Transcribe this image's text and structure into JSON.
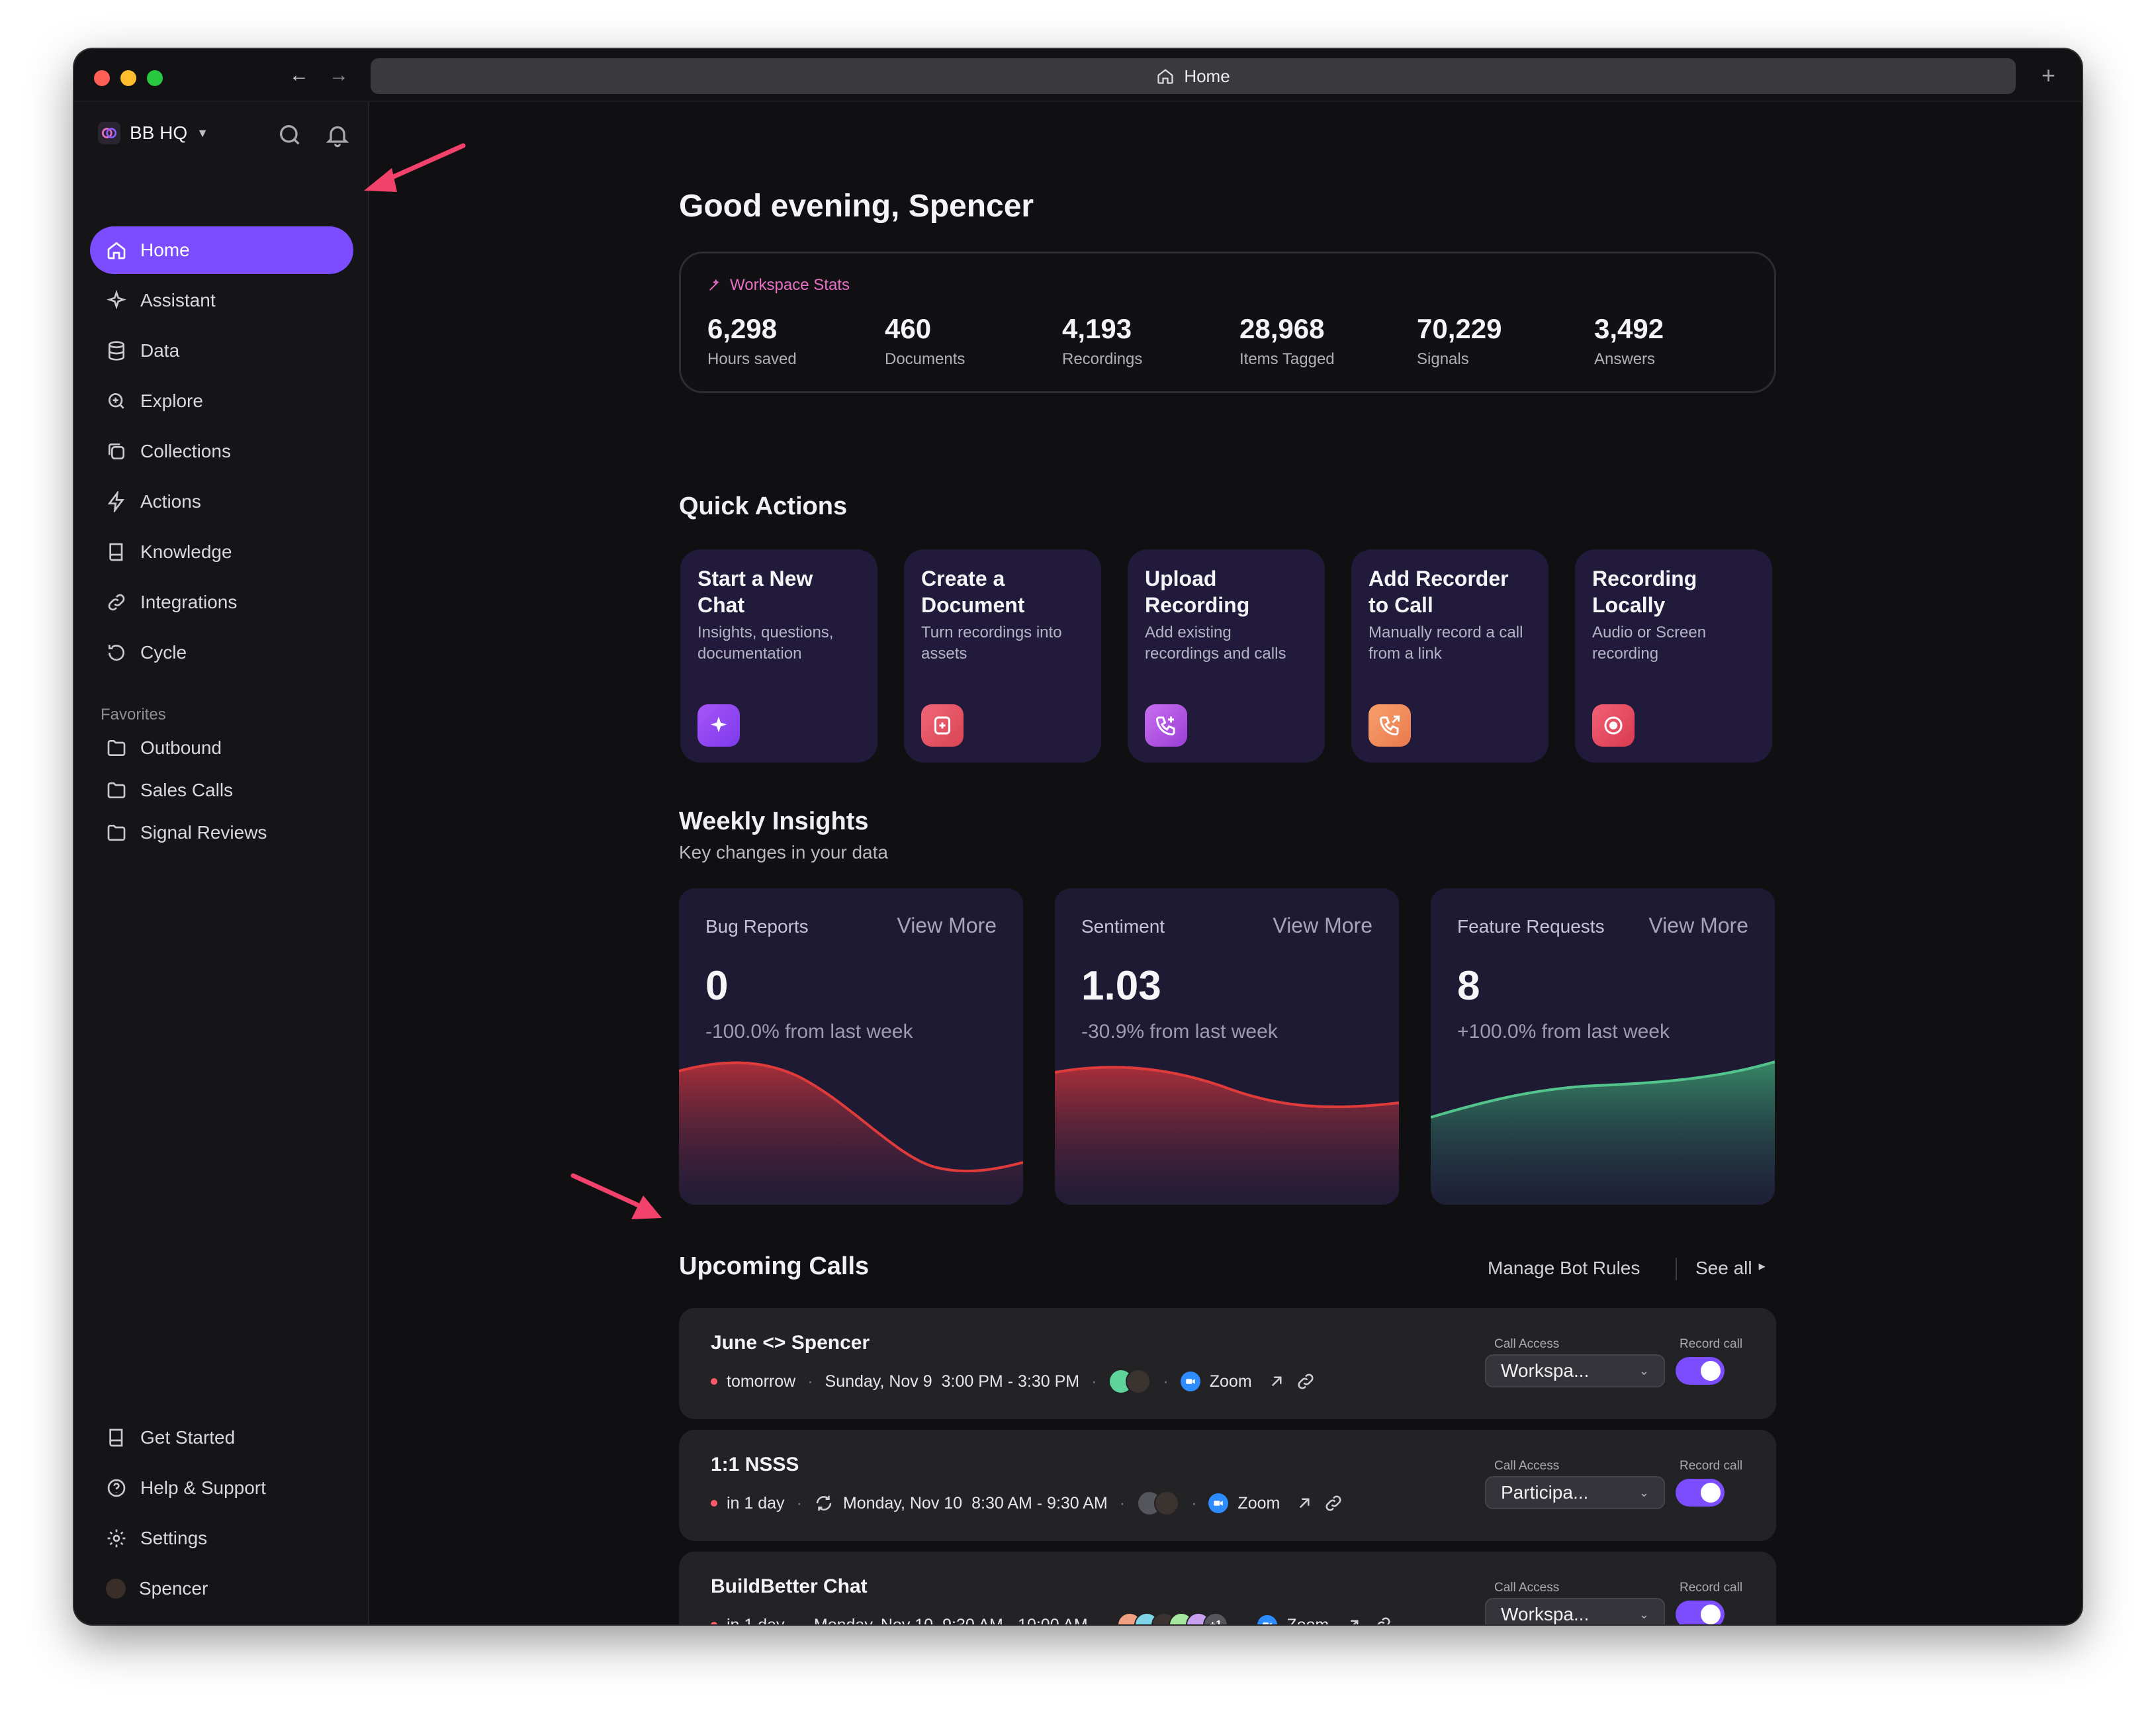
{
  "window": {
    "url_title": "Home"
  },
  "workspace": {
    "name": "BB HQ"
  },
  "nav": [
    {
      "label": "Home",
      "icon": "home-icon"
    },
    {
      "label": "Assistant",
      "icon": "sparkle-icon"
    },
    {
      "label": "Data",
      "icon": "database-icon"
    },
    {
      "label": "Explore",
      "icon": "zoom-icon"
    },
    {
      "label": "Collections",
      "icon": "collections-icon"
    },
    {
      "label": "Actions",
      "icon": "bolt-icon"
    },
    {
      "label": "Knowledge",
      "icon": "book-icon"
    },
    {
      "label": "Integrations",
      "icon": "link-icon"
    },
    {
      "label": "Cycle",
      "icon": "cycle-icon"
    }
  ],
  "favorites": {
    "title": "Favorites",
    "items": [
      "Outbound",
      "Sales Calls",
      "Signal Reviews"
    ]
  },
  "bottom_nav": [
    "Get Started",
    "Help & Support",
    "Settings",
    "Spencer"
  ],
  "greeting": "Good evening, Spencer",
  "workspace_stats": {
    "title": "Workspace Stats",
    "items": [
      {
        "value": "6,298",
        "label": "Hours saved"
      },
      {
        "value": "460",
        "label": "Documents"
      },
      {
        "value": "4,193",
        "label": "Recordings"
      },
      {
        "value": "28,968",
        "label": "Items Tagged"
      },
      {
        "value": "70,229",
        "label": "Signals"
      },
      {
        "value": "3,492",
        "label": "Answers"
      }
    ]
  },
  "quick_actions": {
    "title": "Quick Actions",
    "items": [
      {
        "title": "Start a New Chat",
        "desc": "Insights, questions, documentation",
        "icon": "sparkle-icon",
        "color": "#8b5cf6"
      },
      {
        "title": "Create a Document",
        "desc": "Turn recordings into assets",
        "icon": "document-plus-icon",
        "color": "#e0566a"
      },
      {
        "title": "Upload Recording",
        "desc": "Add existing recordings and calls",
        "icon": "phone-plus-icon",
        "color": "#b455e0"
      },
      {
        "title": "Add Recorder to Call",
        "desc": "Manually record a call from a link",
        "icon": "phone-arrow-icon",
        "color": "#f08a5d"
      },
      {
        "title": "Recording Locally",
        "desc": "Audio or Screen recording",
        "icon": "record-icon",
        "color": "#e5485b"
      }
    ]
  },
  "weekly_insights": {
    "title": "Weekly Insights",
    "subtitle": "Key changes in your data",
    "view_more": "View More",
    "cards": [
      {
        "label": "Bug Reports",
        "value": "0",
        "change": "-100.0% from last week",
        "trend": "down",
        "color": "#d93a3a"
      },
      {
        "label": "Sentiment",
        "value": "1.03",
        "change": "-30.9% from last week",
        "trend": "down",
        "color": "#d93a3a"
      },
      {
        "label": "Feature Requests",
        "value": "8",
        "change": "+100.0% from last week",
        "trend": "up",
        "color": "#45b07d"
      }
    ]
  },
  "upcoming_calls": {
    "title": "Upcoming Calls",
    "manage": "Manage Bot Rules",
    "see_all": "See all",
    "call_access_label": "Call Access",
    "record_label": "Record call",
    "calls": [
      {
        "title": "June <> Spencer",
        "when": "tomorrow",
        "date": "Sunday, Nov 9",
        "time": "3:00 PM - 3:30 PM",
        "platform": "Zoom",
        "access": "Workspa...",
        "recurring": false
      },
      {
        "title": "1:1 NSSS",
        "when": "in 1 day",
        "date": "Monday, Nov 10",
        "time": "8:30 AM - 9:30 AM",
        "platform": "Zoom",
        "access": "Participa...",
        "recurring": true
      },
      {
        "title": "BuildBetter Chat",
        "when": "in 1 day",
        "date": "Monday, Nov 10",
        "time": "9:30 AM - 10:00 AM",
        "platform": "Zoom",
        "access": "Workspa...",
        "recurring": false
      }
    ],
    "avatars_extra": "+1"
  }
}
